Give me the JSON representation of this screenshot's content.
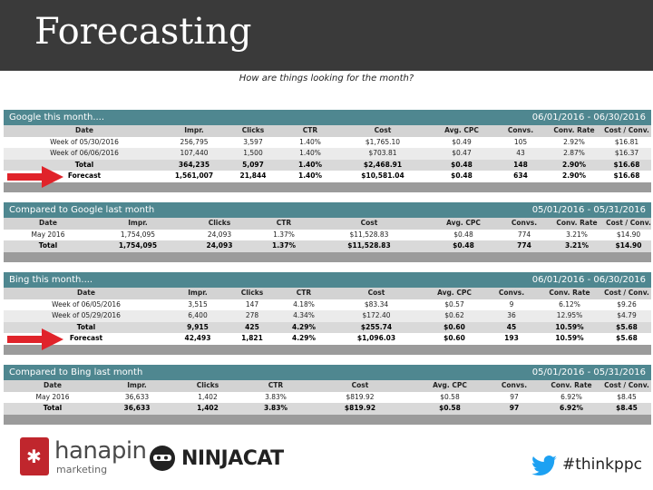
{
  "header": {
    "title": "Forecasting"
  },
  "subtitle": "How are things looking for the month?",
  "panels": [
    {
      "title": "Google this month....",
      "range": "06/01/2016 - 06/30/2016",
      "columns": [
        "Date",
        "Impr.",
        "Clicks",
        "CTR",
        "Cost",
        "Avg. CPC",
        "Convs.",
        "Conv. Rate",
        "Cost / Conv."
      ],
      "rows": [
        [
          "Week of 05/30/2016",
          "256,795",
          "3,597",
          "1.40%",
          "$1,765.10",
          "$0.49",
          "105",
          "2.92%",
          "$16.81"
        ],
        [
          "Week of 06/06/2016",
          "107,440",
          "1,500",
          "1.40%",
          "$703.81",
          "$0.47",
          "43",
          "2.87%",
          "$16.37"
        ],
        [
          "Total",
          "364,235",
          "5,097",
          "1.40%",
          "$2,468.91",
          "$0.48",
          "148",
          "2.90%",
          "$16.68"
        ],
        [
          "Forecast",
          "1,561,007",
          "21,844",
          "1.40%",
          "$10,581.04",
          "$0.48",
          "634",
          "2.90%",
          "$16.68"
        ]
      ]
    },
    {
      "title": "Compared to Google last month",
      "range": "05/01/2016 - 05/31/2016",
      "columns": [
        "Date",
        "Impr.",
        "Clicks",
        "CTR",
        "Cost",
        "Avg. CPC",
        "Convs.",
        "Conv. Rate",
        "Cost / Conv."
      ],
      "rows": [
        [
          "May 2016",
          "1,754,095",
          "24,093",
          "1.37%",
          "$11,528.83",
          "$0.48",
          "774",
          "3.21%",
          "$14.90"
        ],
        [
          "Total",
          "1,754,095",
          "24,093",
          "1.37%",
          "$11,528.83",
          "$0.48",
          "774",
          "3.21%",
          "$14.90"
        ]
      ]
    },
    {
      "title": "Bing this month....",
      "range": "06/01/2016 - 06/30/2016",
      "columns": [
        "Date",
        "Impr.",
        "Clicks",
        "CTR",
        "Cost",
        "Avg. CPC",
        "Convs.",
        "Conv. Rate",
        "Cost / Conv."
      ],
      "rows": [
        [
          "Week of 06/05/2016",
          "3,515",
          "147",
          "4.18%",
          "$83.34",
          "$0.57",
          "9",
          "6.12%",
          "$9.26"
        ],
        [
          "Week of 05/29/2016",
          "6,400",
          "278",
          "4.34%",
          "$172.40",
          "$0.62",
          "36",
          "12.95%",
          "$4.79"
        ],
        [
          "Total",
          "9,915",
          "425",
          "4.29%",
          "$255.74",
          "$0.60",
          "45",
          "10.59%",
          "$5.68"
        ],
        [
          "Forecast",
          "42,493",
          "1,821",
          "4.29%",
          "$1,096.03",
          "$0.60",
          "193",
          "10.59%",
          "$5.68"
        ]
      ]
    },
    {
      "title": "Compared to Bing last month",
      "range": "05/01/2016 - 05/31/2016",
      "columns": [
        "Date",
        "Impr.",
        "Clicks",
        "CTR",
        "Cost",
        "Avg. CPC",
        "Convs.",
        "Conv. Rate",
        "Cost / Conv."
      ],
      "rows": [
        [
          "May 2016",
          "36,633",
          "1,402",
          "3.83%",
          "$819.92",
          "$0.58",
          "97",
          "6.92%",
          "$8.45"
        ],
        [
          "Total",
          "36,633",
          "1,402",
          "3.83%",
          "$819.92",
          "$0.58",
          "97",
          "6.92%",
          "$8.45"
        ]
      ]
    }
  ],
  "footer": {
    "hanapin_name": "hanapin",
    "hanapin_sub": "marketing",
    "ninjacat": "NINJACAT",
    "hashtag": "#thinkppc",
    "hashtag_icon": "twitter-bird-icon"
  },
  "colors": {
    "title_bar": "#3a3a3a",
    "panel_header": "#4f8790",
    "arrow": "#e0232a",
    "twitter": "#1da1f2"
  }
}
